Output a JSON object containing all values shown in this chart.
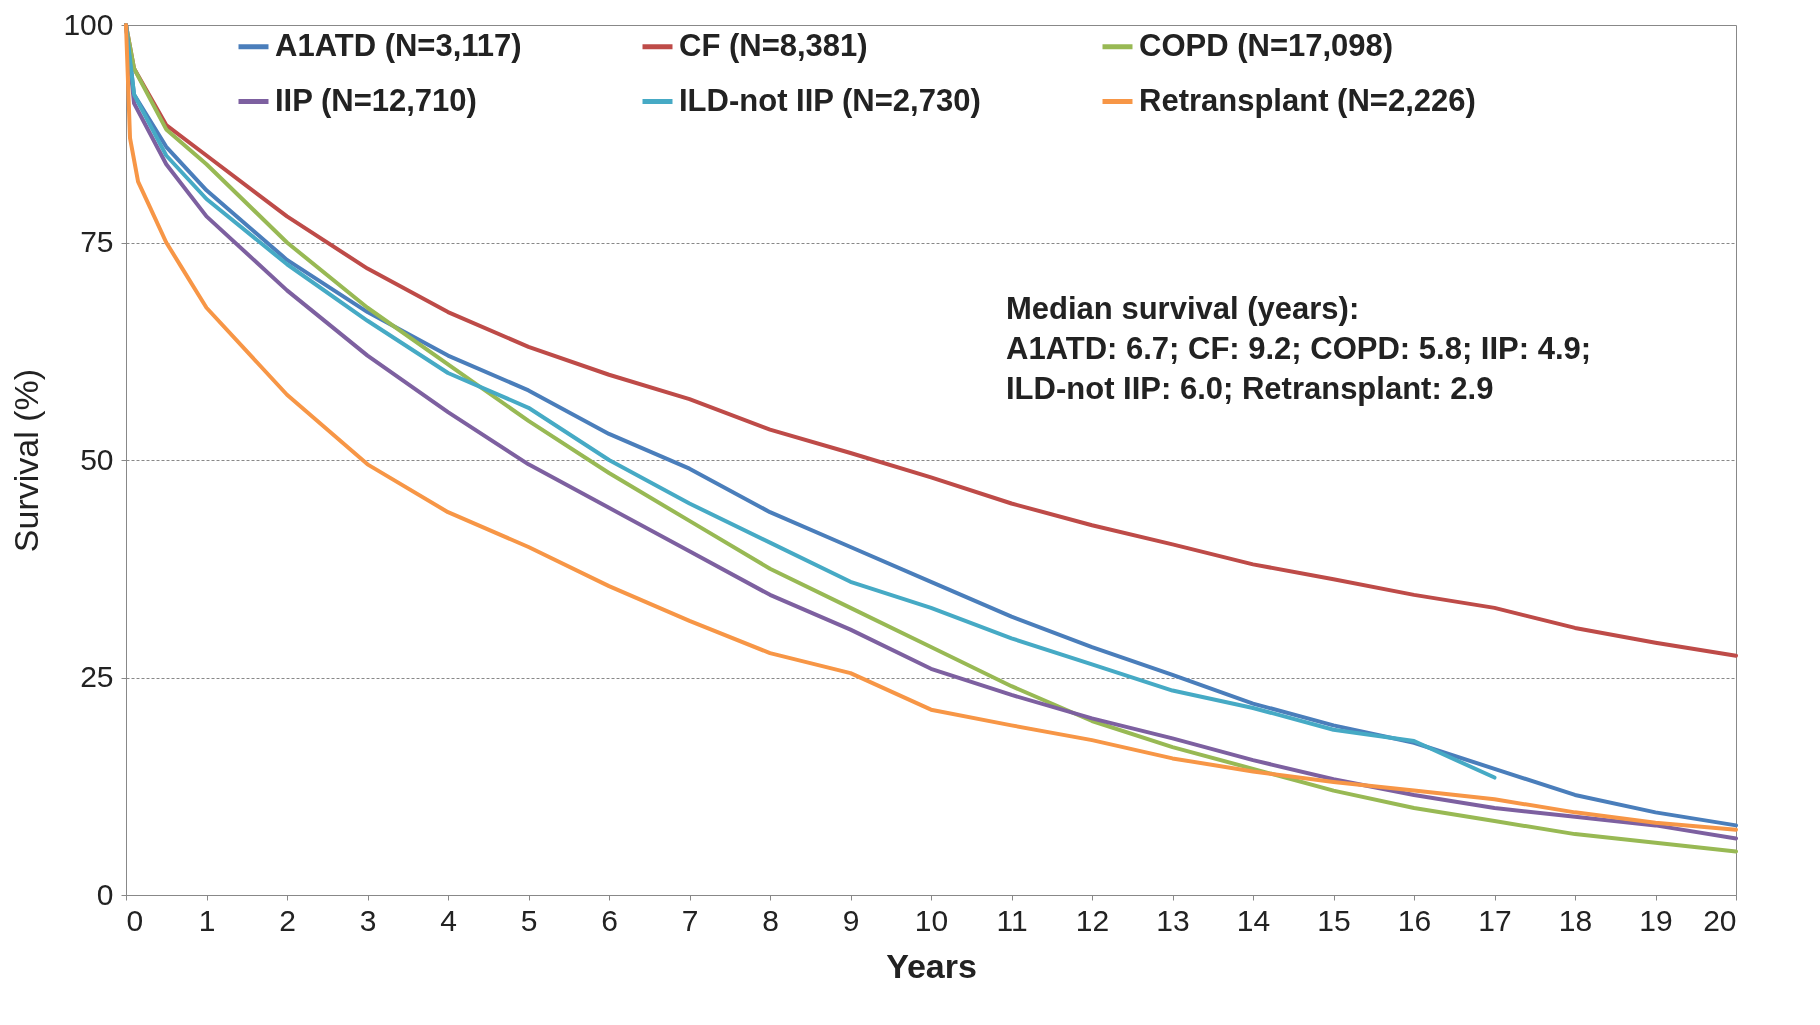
{
  "chart_data": {
    "type": "line",
    "xlabel": "Years",
    "ylabel": "Survival (%)",
    "xlim": [
      0,
      20
    ],
    "xticks": [
      0,
      1,
      2,
      3,
      4,
      5,
      6,
      7,
      8,
      9,
      10,
      11,
      12,
      13,
      14,
      15,
      16,
      17,
      18,
      19,
      20
    ],
    "ylim": [
      0,
      100
    ],
    "yticks": [
      0,
      25,
      50,
      75,
      100
    ],
    "grid": "y",
    "legend": "top",
    "marker": "none",
    "line_style": "solid",
    "annotations": [
      "Median survival (years):",
      "A1ATD: 6.7; CF: 9.2; COPD: 5.8; IIP: 4.9;",
      "ILD-not IIP: 6.0;  Retransplant: 2.9"
    ],
    "series": [
      {
        "name": "A1ATD (N=3,117)",
        "color": "#4a7ebb",
        "x": [
          0,
          0.1,
          0.5,
          1,
          2,
          3,
          4,
          5,
          6,
          7,
          8,
          9,
          10,
          11,
          12,
          13,
          14,
          15,
          16,
          17,
          18,
          19,
          20
        ],
        "values": [
          100,
          92,
          86,
          81,
          73,
          67,
          62,
          58,
          53,
          49,
          44,
          40,
          36,
          32,
          28.5,
          25.3,
          22,
          19.5,
          17.5,
          14.5,
          11.5,
          9.5,
          8
        ]
      },
      {
        "name": "CF (N=8,381)",
        "color": "#be4b48",
        "x": [
          0,
          0.1,
          0.5,
          1,
          2,
          3,
          4,
          5,
          6,
          7,
          8,
          9,
          10,
          11,
          12,
          13,
          14,
          15,
          16,
          17,
          18,
          19,
          20
        ],
        "values": [
          100,
          95,
          88.5,
          85,
          78,
          72,
          67,
          63,
          59.8,
          57,
          53.5,
          50.8,
          48,
          45,
          42.5,
          40.3,
          38,
          36.3,
          34.5,
          33,
          30.7,
          29,
          27.5
        ]
      },
      {
        "name": "COPD (N=17,098)",
        "color": "#98b954",
        "x": [
          0,
          0.1,
          0.5,
          1,
          2,
          3,
          4,
          5,
          6,
          7,
          8,
          9,
          10,
          11,
          12,
          13,
          14,
          15,
          16,
          17,
          18,
          19,
          20
        ],
        "values": [
          100,
          95,
          88,
          84,
          75,
          67.5,
          61,
          54.5,
          48.5,
          43,
          37.5,
          33,
          28.5,
          24,
          20,
          17,
          14.5,
          12,
          10,
          8.5,
          7,
          6,
          5
        ]
      },
      {
        "name": "IIP (N=12,710)",
        "color": "#7d60a0",
        "x": [
          0,
          0.1,
          0.5,
          1,
          2,
          3,
          4,
          5,
          6,
          7,
          8,
          9,
          10,
          11,
          12,
          13,
          14,
          15,
          16,
          17,
          18,
          19,
          20
        ],
        "values": [
          100,
          91,
          84,
          78,
          69.5,
          62,
          55.5,
          49.5,
          44.5,
          39.5,
          34.5,
          30.5,
          26,
          23,
          20.3,
          18,
          15.5,
          13.3,
          11.5,
          10,
          9,
          8,
          6.5
        ]
      },
      {
        "name": "ILD-not IIP (N=2,730)",
        "color": "#46aac5",
        "x": [
          0,
          0.1,
          0.5,
          1,
          2,
          3,
          4,
          5,
          6,
          7,
          8,
          9,
          10,
          11,
          12,
          13,
          14,
          15,
          16,
          17
        ],
        "values": [
          100,
          92,
          85,
          80,
          72.5,
          66,
          60,
          56,
          50,
          45,
          40.5,
          36,
          33,
          29.5,
          26.5,
          23.5,
          21.5,
          19,
          17.7,
          13.5
        ]
      },
      {
        "name": "Retransplant (N=2,226)",
        "color": "#f79646",
        "x": [
          0,
          0.05,
          0.15,
          0.3,
          0.5,
          0.7,
          0.9,
          1,
          2,
          3,
          4,
          5,
          6,
          7,
          8,
          9,
          10,
          11,
          12,
          13,
          14,
          15,
          16,
          17,
          18,
          19,
          20
        ],
        "values": [
          100,
          87,
          82,
          79,
          75,
          72,
          69,
          67.5,
          57.5,
          49.5,
          44,
          40,
          35.5,
          31.5,
          27.8,
          25.5,
          21.3,
          19.5,
          17.8,
          15.7,
          14.2,
          13,
          12,
          11,
          9.5,
          8.3,
          7.5
        ]
      }
    ]
  }
}
